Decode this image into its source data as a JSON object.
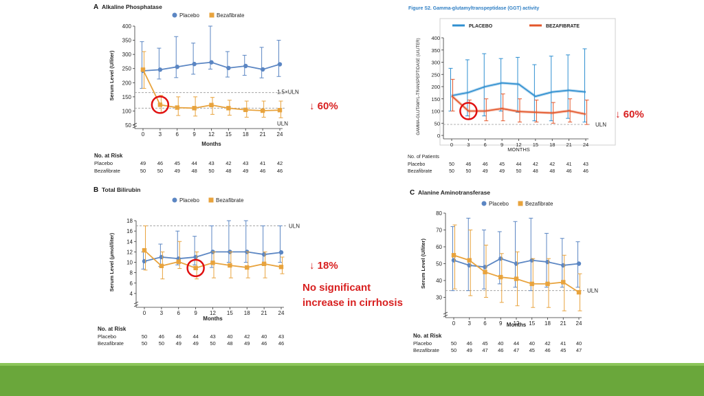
{
  "panels": [
    {
      "id": "alp",
      "heading": {
        "letter": "A",
        "title": "Alkaline Phosphatase"
      },
      "type": "line",
      "ylabel": "Serum Level (U/liter)",
      "xlabel": "Months",
      "ylim": [
        50,
        400
      ],
      "yticks": [
        50,
        100,
        150,
        200,
        250,
        300,
        350,
        400
      ],
      "xticks": [
        0,
        3,
        6,
        9,
        12,
        15,
        18,
        21,
        24
      ],
      "legend": [
        {
          "name": "Placebo",
          "color": "#5b86c3",
          "marker": "circle"
        },
        {
          "name": "Bezafibrate",
          "color": "#e8a33d",
          "marker": "square"
        }
      ],
      "reflines": [
        {
          "value": 165,
          "label": "1.5×ULN"
        },
        {
          "value": 110,
          "label": "ULN"
        }
      ],
      "series": [
        {
          "name": "Placebo",
          "color": "#5b86c3",
          "marker": "circle",
          "values": [
            242,
            246,
            256,
            266,
            272,
            252,
            259,
            247,
            265
          ],
          "err_low": [
            180,
            213,
            218,
            230,
            248,
            220,
            226,
            217,
            222
          ],
          "err_high": [
            345,
            322,
            363,
            340,
            400,
            310,
            297,
            325,
            350
          ]
        },
        {
          "name": "Bezafibrate",
          "color": "#e8a33d",
          "marker": "square",
          "values": [
            246,
            122,
            112,
            110,
            121,
            110,
            104,
            101,
            103
          ],
          "err_low": [
            180,
            92,
            84,
            82,
            88,
            85,
            78,
            78,
            76
          ],
          "err_high": [
            310,
            155,
            150,
            150,
            148,
            138,
            135,
            135,
            135
          ]
        }
      ],
      "highlight": {
        "x": 3,
        "y": 122
      },
      "risk": {
        "title": "No. at Risk",
        "rows": [
          {
            "label": "Placebo",
            "values": [
              "49",
              "46",
              "45",
              "44",
              "43",
              "42",
              "43",
              "41",
              "42"
            ]
          },
          {
            "label": "Bezafibrate",
            "values": [
              "50",
              "50",
              "49",
              "48",
              "50",
              "48",
              "49",
              "46",
              "46"
            ]
          }
        ]
      },
      "note": "↓ 60%"
    },
    {
      "id": "ggt",
      "heading": {
        "letter": "",
        "title": "Figure S2. Gamma-glutamyltranspeptidase (GGT) activity"
      },
      "type": "line",
      "ylabel": "GAMMA-GLUTAMYL-TRANSPEPTIDASE (U/LITER)",
      "xlabel": "MONTHS",
      "ylim": [
        0,
        400
      ],
      "yticks": [
        0,
        50,
        100,
        150,
        200,
        250,
        300,
        350,
        400
      ],
      "xticks": [
        0,
        3,
        6,
        9,
        12,
        15,
        18,
        21,
        24
      ],
      "legend": [
        {
          "name": "PLACEBO",
          "color": "#2f8fd0",
          "marker": "line"
        },
        {
          "name": "BEZAFIBRATE",
          "color": "#e3562a",
          "marker": "line"
        }
      ],
      "reflines": [
        {
          "value": 45,
          "label": "ULN"
        }
      ],
      "series": [
        {
          "name": "Placebo",
          "color": "#2f8fd0",
          "marker": "none",
          "values": [
            163,
            176,
            200,
            215,
            210,
            160,
            178,
            185,
            178
          ],
          "err_low": [
            100,
            80,
            80,
            100,
            95,
            60,
            60,
            70,
            55
          ],
          "err_high": [
            275,
            310,
            335,
            315,
            320,
            290,
            325,
            330,
            355
          ]
        },
        {
          "name": "Bezafibrate",
          "color": "#e3562a",
          "marker": "none",
          "values": [
            162,
            100,
            100,
            110,
            98,
            95,
            92,
            101,
            87
          ],
          "err_low": [
            100,
            68,
            60,
            60,
            55,
            55,
            50,
            55,
            45
          ],
          "err_high": [
            230,
            145,
            150,
            170,
            150,
            145,
            135,
            150,
            145
          ]
        }
      ],
      "highlight": {
        "x": 3,
        "y": 100
      },
      "risk": {
        "title": "No. of Patients",
        "rows": [
          {
            "label": "Placebo",
            "values": [
              "50",
              "46",
              "46",
              "45",
              "44",
              "42",
              "42",
              "41",
              "43"
            ]
          },
          {
            "label": "Bezafibrate",
            "values": [
              "50",
              "50",
              "49",
              "49",
              "50",
              "48",
              "48",
              "46",
              "46"
            ]
          }
        ]
      },
      "note": "↓ 60%"
    },
    {
      "id": "bili",
      "heading": {
        "letter": "B",
        "title": "Total Bilirubin"
      },
      "type": "line",
      "ylabel": "Serum Level (μmol/liter)",
      "xlabel": "Months",
      "ylim": [
        2,
        18
      ],
      "yticks": [
        4,
        6,
        8,
        10,
        12,
        14,
        16,
        18
      ],
      "xticks": [
        0,
        3,
        6,
        9,
        12,
        15,
        18,
        21,
        24
      ],
      "legend": [
        {
          "name": "Placebo",
          "color": "#5b86c3",
          "marker": "circle"
        },
        {
          "name": "Bezafibrate",
          "color": "#e8a33d",
          "marker": "square"
        }
      ],
      "reflines": [
        {
          "value": 17,
          "label": "ULN"
        }
      ],
      "series": [
        {
          "name": "Placebo",
          "color": "#5b86c3",
          "marker": "circle",
          "values": [
            10.2,
            11.0,
            10.7,
            11.0,
            12.0,
            12.0,
            12.0,
            11.5,
            11.9
          ],
          "err_low": [
            8.7,
            9.2,
            9.5,
            9.5,
            9.0,
            10.0,
            10.0,
            9.5,
            10.0
          ],
          "err_high": [
            12.0,
            13.5,
            16.0,
            15.0,
            17.0,
            18.0,
            18.0,
            17.0,
            17.0
          ]
        },
        {
          "name": "Bezafibrate",
          "color": "#e8a33d",
          "marker": "square",
          "values": [
            12.3,
            9.3,
            10.1,
            8.9,
            9.9,
            9.4,
            9.0,
            9.7,
            9.1
          ],
          "err_low": [
            8.5,
            6.8,
            8.8,
            6.8,
            7.0,
            7.0,
            7.0,
            7.0,
            7.8
          ],
          "err_high": [
            17.0,
            12.0,
            14.0,
            12.0,
            12.0,
            12.0,
            12.0,
            12.0,
            11.0
          ]
        }
      ],
      "highlight": {
        "x": 9,
        "y": 8.9
      },
      "risk": {
        "title": "No. at Risk",
        "rows": [
          {
            "label": "Placebo",
            "values": [
              "50",
              "46",
              "46",
              "44",
              "43",
              "40",
              "42",
              "40",
              "43"
            ]
          },
          {
            "label": "Bezafibrate",
            "values": [
              "50",
              "50",
              "49",
              "49",
              "50",
              "48",
              "49",
              "46",
              "46"
            ]
          }
        ]
      },
      "note": "↓ 18%",
      "note2": [
        "No significant",
        "increase in cirrhosis"
      ]
    },
    {
      "id": "alt",
      "heading": {
        "letter": "C",
        "title": "Alanine Aminotransferase"
      },
      "type": "line",
      "ylabel": "Serum Level (U/liter)",
      "xlabel": "Months",
      "ylim": [
        20,
        80
      ],
      "yticks": [
        30,
        40,
        50,
        60,
        70,
        80
      ],
      "xticks": [
        0,
        3,
        6,
        9,
        12,
        15,
        18,
        21,
        24
      ],
      "legend": [
        {
          "name": "Placebo",
          "color": "#5b86c3",
          "marker": "circle"
        },
        {
          "name": "Bezafibrate",
          "color": "#e8a33d",
          "marker": "square"
        }
      ],
      "reflines": [
        {
          "value": 34,
          "label": "ULN"
        }
      ],
      "series": [
        {
          "name": "Placebo",
          "color": "#5b86c3",
          "marker": "circle",
          "values": [
            52,
            49,
            48,
            53,
            50,
            52,
            51,
            49,
            50
          ],
          "err_low": [
            34,
            34,
            35,
            38,
            36,
            34,
            36,
            36,
            36
          ],
          "err_high": [
            72,
            77,
            70,
            69,
            75,
            77,
            68,
            65,
            63
          ]
        },
        {
          "name": "Bezafibrate",
          "color": "#e8a33d",
          "marker": "square",
          "values": [
            55,
            52,
            45,
            42,
            41,
            38,
            38,
            39,
            33
          ],
          "err_low": [
            35,
            31,
            30,
            27,
            25,
            24,
            24,
            22,
            22
          ],
          "err_high": [
            73,
            70,
            61,
            56,
            57,
            53,
            53,
            55,
            44
          ]
        }
      ],
      "risk": {
        "title": "No. at Risk",
        "rows": [
          {
            "label": "Placebo",
            "values": [
              "50",
              "46",
              "45",
              "40",
              "44",
              "40",
              "42",
              "41",
              "40"
            ]
          },
          {
            "label": "Bezafibrate",
            "values": [
              "50",
              "49",
              "47",
              "46",
              "47",
              "45",
              "46",
              "45",
              "47"
            ]
          }
        ]
      }
    }
  ],
  "chart_data": [
    {
      "type": "line",
      "title": "Alkaline Phosphatase",
      "xlabel": "Months",
      "ylabel": "Serum Level (U/liter)",
      "x": [
        0,
        3,
        6,
        9,
        12,
        15,
        18,
        21,
        24
      ],
      "ylim": [
        50,
        400
      ],
      "series": [
        {
          "name": "Placebo",
          "values": [
            242,
            246,
            256,
            266,
            272,
            252,
            259,
            247,
            265
          ]
        },
        {
          "name": "Bezafibrate",
          "values": [
            246,
            122,
            112,
            110,
            121,
            110,
            104,
            101,
            103
          ]
        }
      ]
    },
    {
      "type": "line",
      "title": "Figure S2. Gamma-glutamyltranspeptidase (GGT) activity",
      "xlabel": "MONTHS",
      "ylabel": "GAMMA-GLUTAMYL-TRANSPEPTIDASE (U/LITER)",
      "x": [
        0,
        3,
        6,
        9,
        12,
        15,
        18,
        21,
        24
      ],
      "ylim": [
        0,
        400
      ],
      "series": [
        {
          "name": "PLACEBO",
          "values": [
            163,
            176,
            200,
            215,
            210,
            160,
            178,
            185,
            178
          ]
        },
        {
          "name": "BEZAFIBRATE",
          "values": [
            162,
            100,
            100,
            110,
            98,
            95,
            92,
            101,
            87
          ]
        }
      ]
    },
    {
      "type": "line",
      "title": "Total Bilirubin",
      "xlabel": "Months",
      "ylabel": "Serum Level (μmol/liter)",
      "x": [
        0,
        3,
        6,
        9,
        12,
        15,
        18,
        21,
        24
      ],
      "ylim": [
        2,
        18
      ],
      "series": [
        {
          "name": "Placebo",
          "values": [
            10.2,
            11.0,
            10.7,
            11.0,
            12.0,
            12.0,
            12.0,
            11.5,
            11.9
          ]
        },
        {
          "name": "Bezafibrate",
          "values": [
            12.3,
            9.3,
            10.1,
            8.9,
            9.9,
            9.4,
            9.0,
            9.7,
            9.1
          ]
        }
      ]
    },
    {
      "type": "line",
      "title": "Alanine Aminotransferase",
      "xlabel": "Months",
      "ylabel": "Serum Level (U/liter)",
      "x": [
        0,
        3,
        6,
        9,
        12,
        15,
        18,
        21,
        24
      ],
      "ylim": [
        20,
        80
      ],
      "series": [
        {
          "name": "Placebo",
          "values": [
            52,
            49,
            48,
            53,
            50,
            52,
            51,
            49,
            50
          ]
        },
        {
          "name": "Bezafibrate",
          "values": [
            55,
            52,
            45,
            42,
            41,
            38,
            38,
            39,
            33
          ]
        }
      ]
    }
  ]
}
